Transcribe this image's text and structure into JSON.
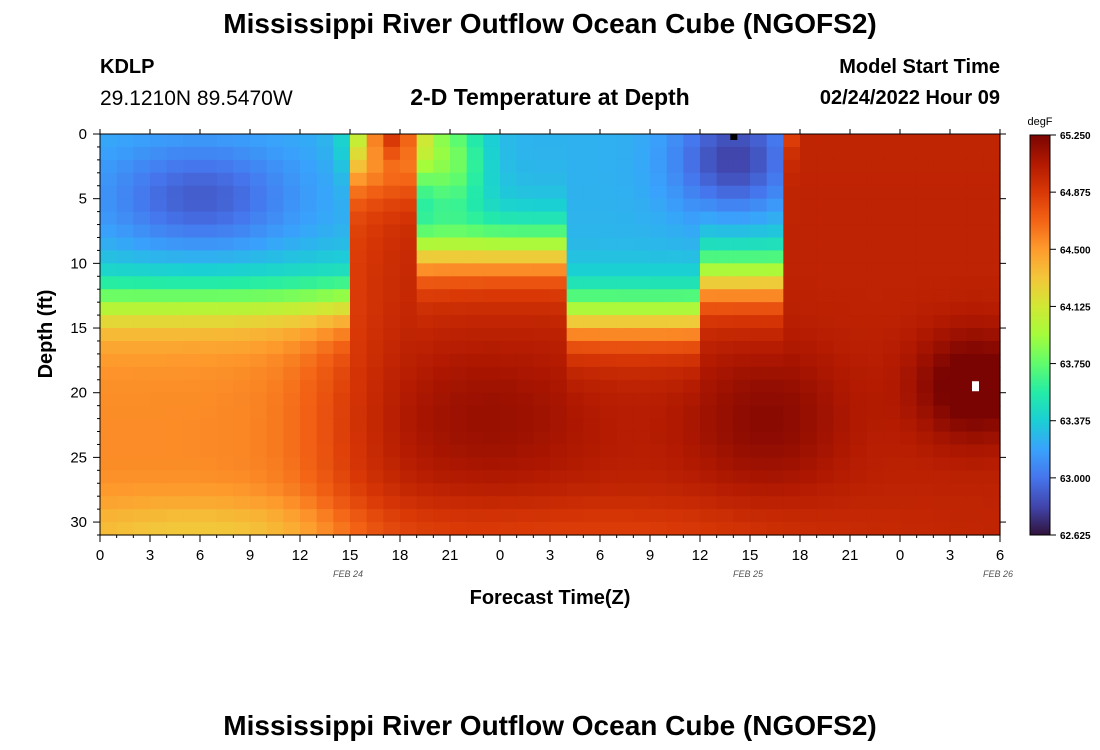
{
  "header": {
    "title": "Mississippi River Outflow Ocean Cube (NGOFS2)",
    "station": "KDLP",
    "coords": "29.1210N  89.5470W",
    "subtitle": "2-D Temperature at Depth",
    "model_start_label": "Model Start Time",
    "model_start_time": "02/24/2022 Hour 09"
  },
  "footer": {
    "title": "Mississippi River Outflow Ocean Cube (NGOFS2)"
  },
  "chart_data": {
    "type": "heatmap",
    "xlabel": "Forecast Time(Z)",
    "ylabel": "Depth (ft)",
    "x_ticks": [
      "0",
      "3",
      "6",
      "9",
      "12",
      "15",
      "18",
      "21",
      "0",
      "3",
      "6",
      "9",
      "12",
      "15",
      "18",
      "21",
      "0",
      "3",
      "6"
    ],
    "date_labels": [
      {
        "label": "FEB 24",
        "after_tick": 5
      },
      {
        "label": "FEB 25",
        "after_tick": 13
      },
      {
        "label": "FEB 26",
        "after_tick": 18
      }
    ],
    "y_ticks": [
      0,
      5,
      10,
      15,
      20,
      25,
      30
    ],
    "ylim": [
      0,
      31
    ],
    "xlim_hours": [
      0,
      54
    ],
    "colorbar": {
      "unit": "degF",
      "min": 62.625,
      "max": 65.25,
      "ticks": [
        "65.250",
        "64.875",
        "64.500",
        "64.125",
        "63.750",
        "63.375",
        "63.000",
        "62.625"
      ],
      "colors": [
        "#30123b",
        "#4145ab",
        "#4675ed",
        "#39a2fc",
        "#1bcfd4",
        "#24eca6",
        "#61fc6c",
        "#a4fc3b",
        "#d1e834",
        "#f3c63a",
        "#fe9b2d",
        "#f36315",
        "#d93806",
        "#b11901",
        "#7a0402"
      ]
    },
    "grid": false,
    "field_features": [
      {
        "kind": "cold",
        "hour": 6,
        "depth": 5,
        "value": 62.95
      },
      {
        "kind": "cold",
        "hour": 30,
        "depth": 5,
        "value": 63.25
      },
      {
        "kind": "cold",
        "hour": 38,
        "depth": 3,
        "value": 62.8
      },
      {
        "kind": "warm",
        "hour": 17,
        "depth": 1,
        "value": 64.95
      },
      {
        "kind": "warm",
        "hour": 23,
        "depth": 22,
        "value": 65.0
      },
      {
        "kind": "warm",
        "hour": 40,
        "depth": 22,
        "value": 65.15
      },
      {
        "kind": "warm",
        "hour": 52,
        "depth": 19,
        "value": 65.25
      }
    ]
  }
}
